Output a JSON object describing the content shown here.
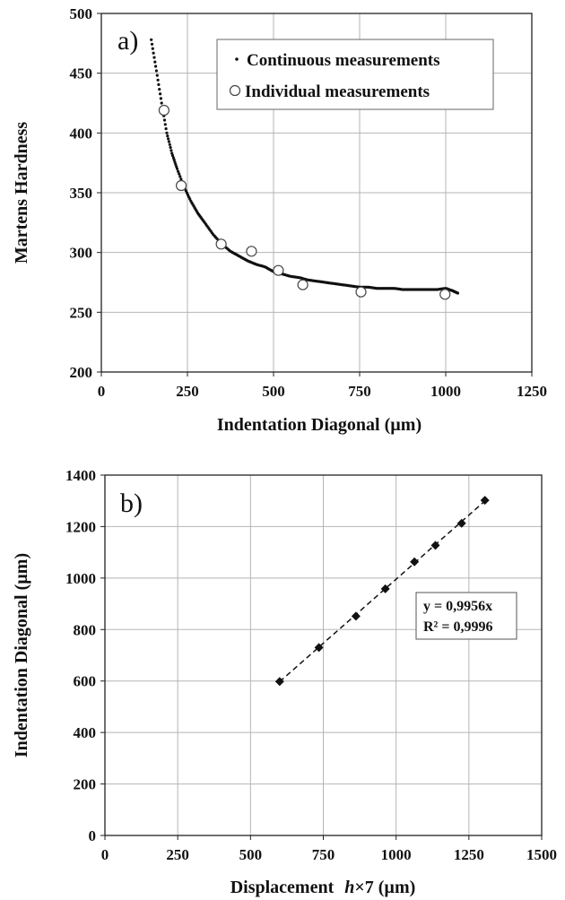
{
  "chart_data": [
    {
      "type": "scatter",
      "panel_label": "a)",
      "xlabel": "Indentation Diagonal (µm)",
      "ylabel": "Martens Hardness",
      "xlim": [
        0,
        1250
      ],
      "ylim": [
        200,
        500
      ],
      "xticks": [
        "0",
        "250",
        "500",
        "750",
        "1000",
        "1250"
      ],
      "yticks": [
        "200",
        "250",
        "300",
        "350",
        "400",
        "450",
        "500"
      ],
      "grid": true,
      "legend_position": "top-right",
      "series": [
        {
          "name": "Continuous measurements",
          "style": "small-dots",
          "x": [
            145,
            160,
            175,
            190,
            205,
            220,
            240,
            260,
            280,
            300,
            325,
            350,
            375,
            400,
            425,
            450,
            475,
            500,
            525,
            550,
            575,
            600,
            625,
            650,
            675,
            700,
            725,
            750,
            775,
            800,
            825,
            850,
            875,
            900,
            925,
            950,
            975,
            1000,
            1020,
            1035
          ],
          "y": [
            478,
            452,
            425,
            400,
            383,
            370,
            355,
            343,
            333,
            325,
            315,
            307,
            301,
            297,
            293,
            290,
            288,
            284,
            282,
            280,
            279,
            277,
            276,
            275,
            274,
            273,
            272,
            271,
            271,
            270,
            270,
            270,
            269,
            269,
            269,
            269,
            269,
            270,
            268,
            266
          ]
        },
        {
          "name": "Individual measurements",
          "style": "open-circle",
          "x": [
            182,
            232,
            348,
            436,
            514,
            585,
            754,
            998
          ],
          "y": [
            419,
            356,
            307,
            301,
            285,
            273,
            267,
            265
          ]
        }
      ]
    },
    {
      "type": "scatter",
      "panel_label": "b)",
      "xlabel_main": "Displacement",
      "xlabel_var": "h",
      "xlabel_rest": "×7 (µm)",
      "ylabel": "Indentation Diagonal (µm)",
      "xlim": [
        0,
        1500
      ],
      "ylim": [
        0,
        1400
      ],
      "xticks": [
        "0",
        "250",
        "500",
        "750",
        "1000",
        "1250",
        "1500"
      ],
      "yticks": [
        "0",
        "200",
        "400",
        "600",
        "800",
        "1000",
        "1200",
        "1400"
      ],
      "grid": true,
      "series": [
        {
          "style": "filled-diamond",
          "x": [
            600,
            735,
            862,
            963,
            1063,
            1135,
            1225,
            1305
          ],
          "y": [
            598,
            730,
            852,
            958,
            1063,
            1127,
            1213,
            1302
          ]
        }
      ],
      "trendline": {
        "slope": 0.9956,
        "x_range": [
          600,
          1305
        ],
        "style": "dashed"
      },
      "annotation": [
        "y = 0,9956x",
        "R² = 0,9996"
      ]
    }
  ]
}
